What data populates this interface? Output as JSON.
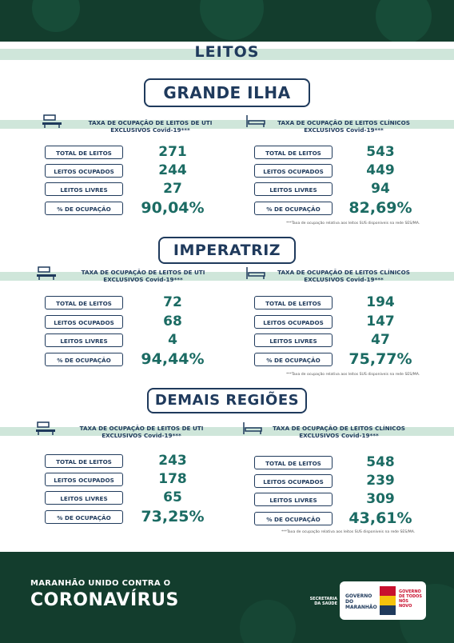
{
  "header": {
    "title": "LEITOS"
  },
  "regions": [
    {
      "name": "GRANDE ILHA",
      "uti": {
        "category": "TAXA DE OCUPAÇÃO DE LEITOS DE UTI EXCLUSIVOS Covid-19***",
        "rows": [
          {
            "label": "TOTAL DE LEITOS",
            "value": "271"
          },
          {
            "label": "LEITOS OCUPADOS",
            "value": "244"
          },
          {
            "label": "LEITOS LIVRES",
            "value": "27"
          },
          {
            "label": "% DE OCUPAÇÃO",
            "value": "90,04%"
          }
        ]
      },
      "clinicos": {
        "category": "TAXA DE OCUPAÇÃO DE LEITOS CLÍNICOS EXCLUSIVOS Covid-19***",
        "rows": [
          {
            "label": "TOTAL DE LEITOS",
            "value": "543"
          },
          {
            "label": "LEITOS OCUPADOS",
            "value": "449"
          },
          {
            "label": "LEITOS LIVRES",
            "value": "94"
          },
          {
            "label": "% DE OCUPAÇÃO",
            "value": "82,69%"
          }
        ]
      },
      "note": "***Taxa de ocupação relativa aos leitos SUS disponíveis na rede SES/MA."
    },
    {
      "name": "IMPERATRIZ",
      "uti": {
        "category": "TAXA DE OCUPAÇÃO DE LEITOS DE UTI EXCLUSIVOS Covid-19***",
        "rows": [
          {
            "label": "TOTAL DE LEITOS",
            "value": "72"
          },
          {
            "label": "LEITOS OCUPADOS",
            "value": "68"
          },
          {
            "label": "LEITOS LIVRES",
            "value": "4"
          },
          {
            "label": "% DE OCUPAÇÃO",
            "value": "94,44%"
          }
        ]
      },
      "clinicos": {
        "category": "TAXA DE OCUPAÇÃO DE LEITOS CLÍNICOS EXCLUSIVOS Covid-19***",
        "rows": [
          {
            "label": "TOTAL DE LEITOS",
            "value": "194"
          },
          {
            "label": "LEITOS OCUPADOS",
            "value": "147"
          },
          {
            "label": "LEITOS LIVRES",
            "value": "47"
          },
          {
            "label": "% DE OCUPAÇÃO",
            "value": "75,77%"
          }
        ]
      },
      "note": "***Taxa de ocupação relativa aos leitos SUS disponíveis na rede SES/MA."
    },
    {
      "name": "DEMAIS REGIÕES",
      "uti": {
        "category": "TAXA DE OCUPAÇÃO DE LEITOS DE UTI EXCLUSIVOS Covid-19***",
        "rows": [
          {
            "label": "TOTAL DE LEITOS",
            "value": "243"
          },
          {
            "label": "LEITOS OCUPADOS",
            "value": "178"
          },
          {
            "label": "LEITOS LIVRES",
            "value": "65"
          },
          {
            "label": "% DE OCUPAÇÃO",
            "value": "73,25%"
          }
        ]
      },
      "clinicos": {
        "category": "TAXA DE OCUPAÇÃO DE LEITOS CLÍNICOS EXCLUSIVOS Covid-19***",
        "rows": [
          {
            "label": "TOTAL DE LEITOS",
            "value": "548"
          },
          {
            "label": "LEITOS OCUPADOS",
            "value": "239"
          },
          {
            "label": "LEITOS LIVRES",
            "value": "309"
          },
          {
            "label": "% DE OCUPAÇÃO",
            "value": "43,61%"
          }
        ]
      },
      "note": "***Taxa de ocupação relativa aos leitos SUS disponíveis na rede SES/MA."
    }
  ],
  "footer": {
    "slogan": "MARANHÃO UNIDO CONTRA O",
    "campaign": "CORONAVÍRUS",
    "secretaria": "SECRETARIA DA SAÚDE",
    "governo": "GOVERNO DO MARANHÃO",
    "tagline": "GOVERNO DE TODOS NÓS NOVO"
  },
  "colors": {
    "dark_green": "#133d2d",
    "mint": "#cfe6da",
    "navy": "#1f3a5c",
    "teal": "#1b6b63"
  }
}
